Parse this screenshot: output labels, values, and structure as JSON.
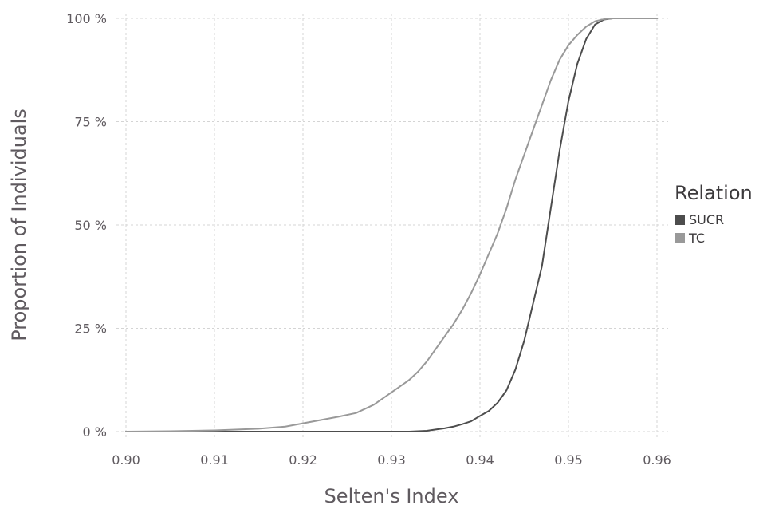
{
  "chart_data": {
    "type": "line",
    "xlabel": "Selten's Index",
    "ylabel": "Proportion of Individuals",
    "xlim": [
      0.9,
      0.96
    ],
    "ylim": [
      0,
      100
    ],
    "x_ticks": [
      "0.90",
      "0.91",
      "0.92",
      "0.93",
      "0.94",
      "0.95",
      "0.96"
    ],
    "y_ticks": [
      "0 %",
      "25 %",
      "50 %",
      "75 %",
      "100 %"
    ],
    "grid": true,
    "legend": {
      "title": "Relation",
      "placement": "right"
    },
    "series": [
      {
        "name": "SUCR",
        "color": "#4d4d4d",
        "points": [
          [
            0.9,
            0
          ],
          [
            0.925,
            0
          ],
          [
            0.932,
            0
          ],
          [
            0.934,
            0.2
          ],
          [
            0.935,
            0.5
          ],
          [
            0.936,
            0.8
          ],
          [
            0.937,
            1.2
          ],
          [
            0.938,
            1.8
          ],
          [
            0.939,
            2.5
          ],
          [
            0.94,
            3.8
          ],
          [
            0.941,
            5
          ],
          [
            0.942,
            7
          ],
          [
            0.943,
            10
          ],
          [
            0.944,
            15
          ],
          [
            0.945,
            22
          ],
          [
            0.946,
            31
          ],
          [
            0.947,
            40
          ],
          [
            0.948,
            54
          ],
          [
            0.949,
            68
          ],
          [
            0.95,
            80
          ],
          [
            0.951,
            89
          ],
          [
            0.952,
            95
          ],
          [
            0.953,
            98.5
          ],
          [
            0.954,
            99.7
          ],
          [
            0.955,
            100
          ],
          [
            0.96,
            100
          ]
        ]
      },
      {
        "name": "TC",
        "color": "#999999",
        "points": [
          [
            0.9,
            0
          ],
          [
            0.905,
            0.1
          ],
          [
            0.91,
            0.3
          ],
          [
            0.915,
            0.7
          ],
          [
            0.918,
            1.2
          ],
          [
            0.92,
            2
          ],
          [
            0.922,
            2.8
          ],
          [
            0.924,
            3.6
          ],
          [
            0.926,
            4.5
          ],
          [
            0.928,
            6.5
          ],
          [
            0.929,
            8
          ],
          [
            0.93,
            9.5
          ],
          [
            0.931,
            11
          ],
          [
            0.932,
            12.5
          ],
          [
            0.933,
            14.5
          ],
          [
            0.934,
            17
          ],
          [
            0.935,
            20
          ],
          [
            0.936,
            23
          ],
          [
            0.937,
            26
          ],
          [
            0.938,
            29.5
          ],
          [
            0.939,
            33.5
          ],
          [
            0.94,
            38
          ],
          [
            0.941,
            43
          ],
          [
            0.942,
            48
          ],
          [
            0.943,
            54
          ],
          [
            0.944,
            61
          ],
          [
            0.945,
            67
          ],
          [
            0.946,
            73
          ],
          [
            0.947,
            79
          ],
          [
            0.948,
            85
          ],
          [
            0.949,
            90
          ],
          [
            0.95,
            93.5
          ],
          [
            0.951,
            96
          ],
          [
            0.952,
            98
          ],
          [
            0.953,
            99.3
          ],
          [
            0.954,
            99.8
          ],
          [
            0.955,
            100
          ],
          [
            0.96,
            100
          ]
        ]
      }
    ]
  }
}
